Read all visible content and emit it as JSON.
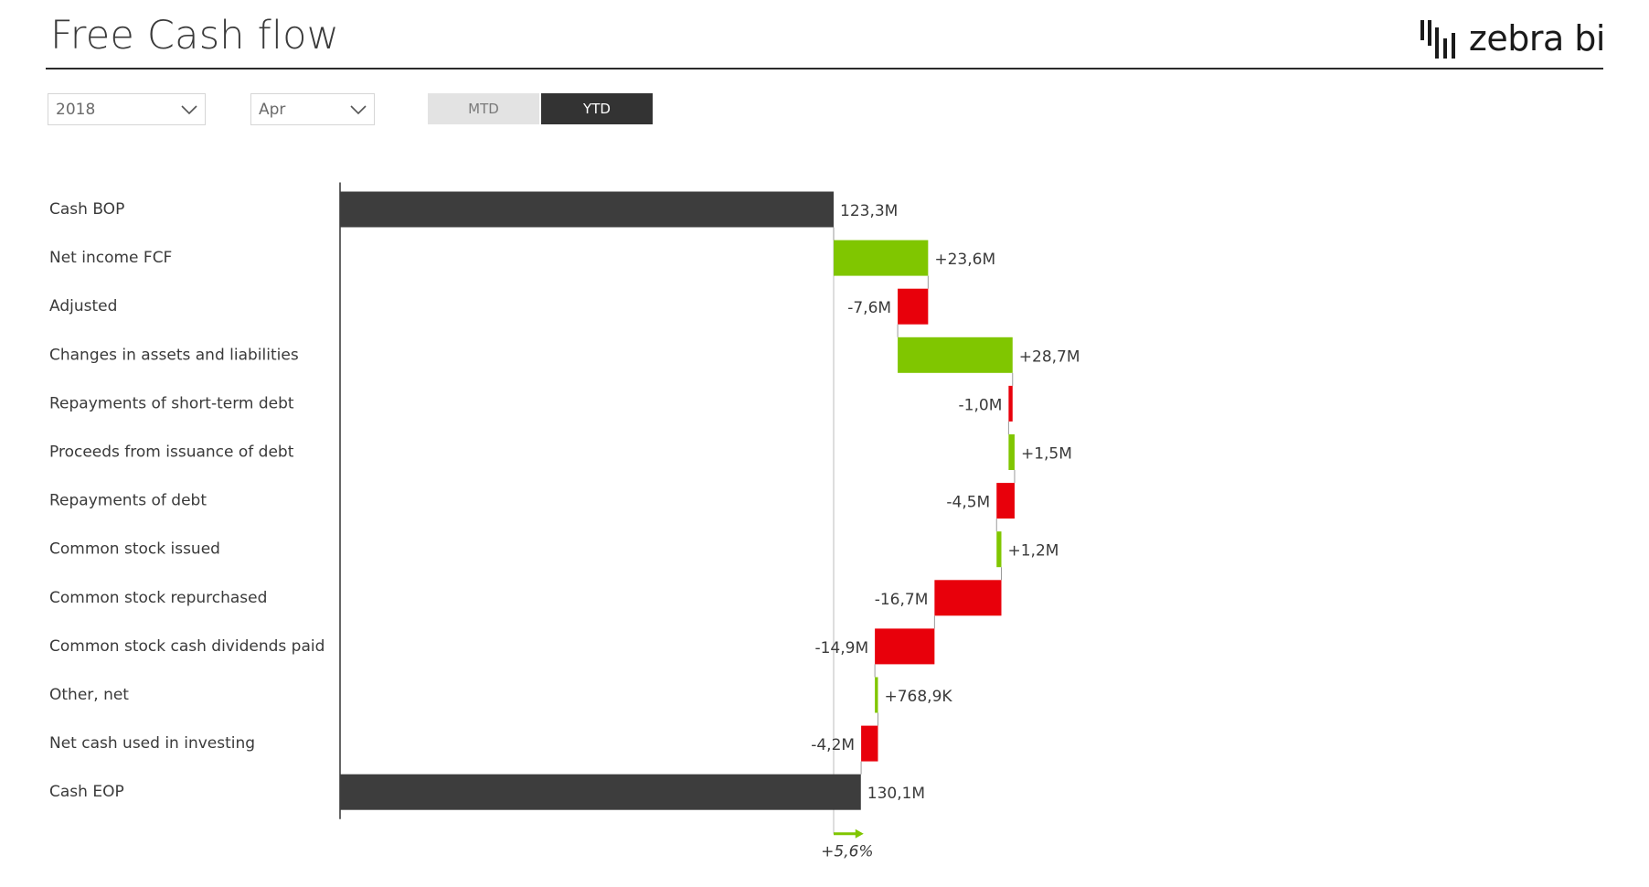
{
  "header": {
    "title": "Free Cash flow",
    "logo_text": "zebra bi"
  },
  "filters": {
    "year": "2018",
    "month": "Apr"
  },
  "toggle": {
    "mtd_label": "MTD",
    "ytd_label": "YTD",
    "selected": "YTD"
  },
  "colors": {
    "total": "#3d3d3d",
    "positive": "#80c600",
    "negative": "#e8000b",
    "axis": "#333333"
  },
  "chart_data": {
    "type": "waterfall",
    "title": "",
    "xlabel": "",
    "ylabel": "",
    "items": [
      {
        "label": "Cash BOP",
        "value": 123.3,
        "kind": "total",
        "display": "123,3M"
      },
      {
        "label": "Net income FCF",
        "value": 23.6,
        "kind": "delta",
        "display": "+23,6M"
      },
      {
        "label": "Adjusted",
        "value": -7.6,
        "kind": "delta",
        "display": "-7,6M"
      },
      {
        "label": "Changes in assets and liabilities",
        "value": 28.7,
        "kind": "delta",
        "display": "+28,7M"
      },
      {
        "label": "Repayments of short-term debt",
        "value": -1.0,
        "kind": "delta",
        "display": "-1,0M"
      },
      {
        "label": "Proceeds from issuance of debt",
        "value": 1.5,
        "kind": "delta",
        "display": "+1,5M"
      },
      {
        "label": "Repayments of debt",
        "value": -4.5,
        "kind": "delta",
        "display": "-4,5M"
      },
      {
        "label": "Common stock issued",
        "value": 1.2,
        "kind": "delta",
        "display": "+1,2M"
      },
      {
        "label": "Common stock repurchased",
        "value": -16.7,
        "kind": "delta",
        "display": "-16,7M"
      },
      {
        "label": "Common stock cash dividends paid",
        "value": -14.9,
        "kind": "delta",
        "display": "-14,9M"
      },
      {
        "label": "Other, net",
        "value": 0.7689,
        "kind": "delta",
        "display": "+768,9K"
      },
      {
        "label": "Net cash used in investing",
        "value": -4.2,
        "kind": "delta",
        "display": "-4,2M"
      },
      {
        "label": "Cash EOP",
        "value": 130.1,
        "kind": "total",
        "display": "130,1M"
      }
    ],
    "variance": {
      "value_percent": 5.6,
      "display": "+5,6%"
    }
  }
}
